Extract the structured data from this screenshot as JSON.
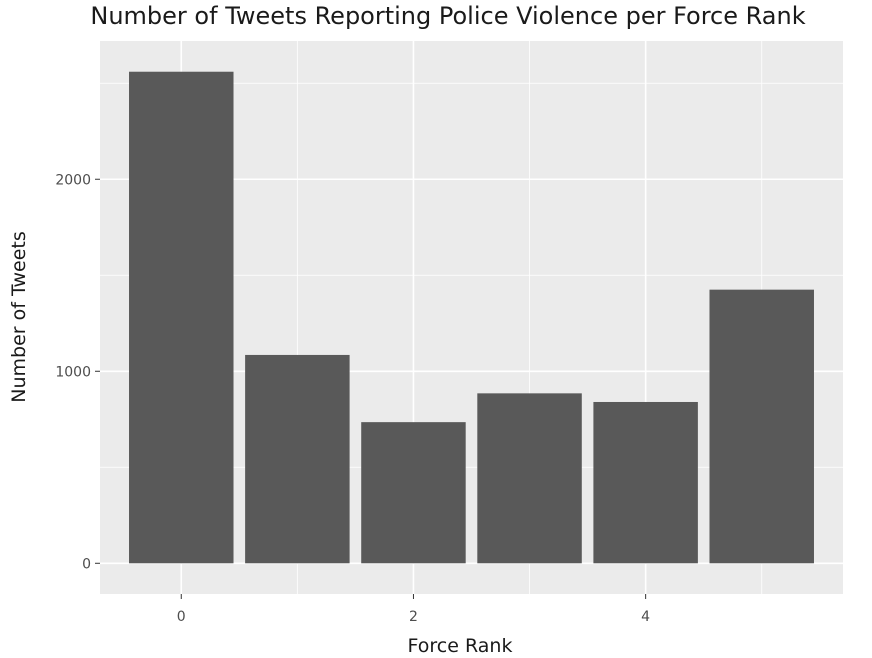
{
  "chart_data": {
    "type": "bar",
    "title": "Number of Tweets Reporting Police Violence per Force Rank",
    "xlabel": "Force Rank",
    "ylabel": "Number of Tweets",
    "x": [
      0,
      1,
      2,
      3,
      4,
      5
    ],
    "values": [
      2560,
      1085,
      735,
      885,
      840,
      1425
    ],
    "xlim": [
      -0.7,
      5.7
    ],
    "ylim": [
      -160,
      2720
    ],
    "x_ticks": [
      0,
      2,
      4
    ],
    "x_tick_labels": [
      "0",
      "2",
      "4"
    ],
    "x_minor_gridlines": [
      1,
      3,
      5
    ],
    "y_ticks": [
      0,
      1000,
      2000
    ],
    "y_tick_labels": [
      "0",
      "1000",
      "2000"
    ],
    "y_minor_gridlines": [
      500,
      1500,
      2500
    ],
    "bar_width": 0.9,
    "grid": true,
    "legend": "none",
    "colors": {
      "bar": "#595959",
      "panel_background": "#ebebeb",
      "gridline": "#ffffff",
      "tick_mark": "#333333"
    }
  }
}
